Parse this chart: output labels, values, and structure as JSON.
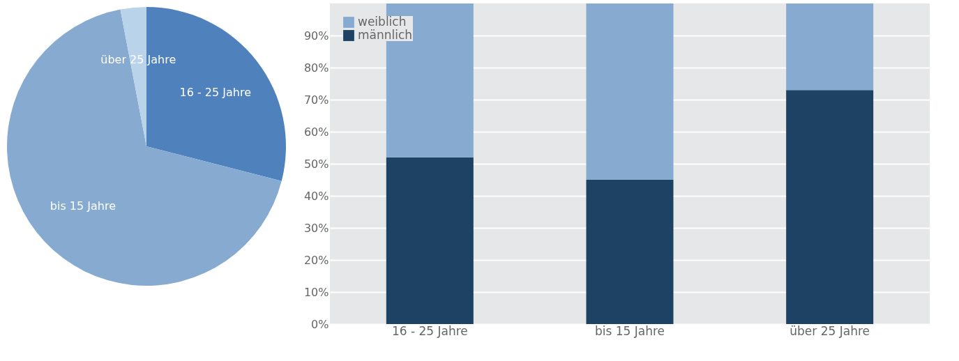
{
  "chart_data": [
    {
      "type": "pie",
      "categories": [
        "16 - 25 Jahre",
        "bis 15 Jahre",
        "über 25 Jahre"
      ],
      "values": [
        29,
        68,
        3
      ],
      "colors": [
        "#4f81bd",
        "#86aad0",
        "#b9d3ea"
      ]
    },
    {
      "type": "bar",
      "stacked": true,
      "categories": [
        "16 - 25 Jahre",
        "bis 15 Jahre",
        "über 25 Jahre"
      ],
      "series": [
        {
          "name": "männlich",
          "color": "#1d4263",
          "values": [
            52,
            45,
            73
          ]
        },
        {
          "name": "weiblich",
          "color": "#86aad0",
          "values": [
            48,
            55,
            27
          ]
        }
      ],
      "ylim": [
        0,
        100
      ],
      "yticks": [
        {
          "value": 0,
          "label": "0%"
        },
        {
          "value": 10,
          "label": "10%"
        },
        {
          "value": 20,
          "label": "20%"
        },
        {
          "value": 30,
          "label": "30%"
        },
        {
          "value": 40,
          "label": "40%"
        },
        {
          "value": 50,
          "label": "50%"
        },
        {
          "value": 60,
          "label": "60%"
        },
        {
          "value": 70,
          "label": "70%"
        },
        {
          "value": 80,
          "label": "80%"
        },
        {
          "value": 90,
          "label": "90%"
        }
      ],
      "grid": "y",
      "legend": "top left"
    }
  ]
}
